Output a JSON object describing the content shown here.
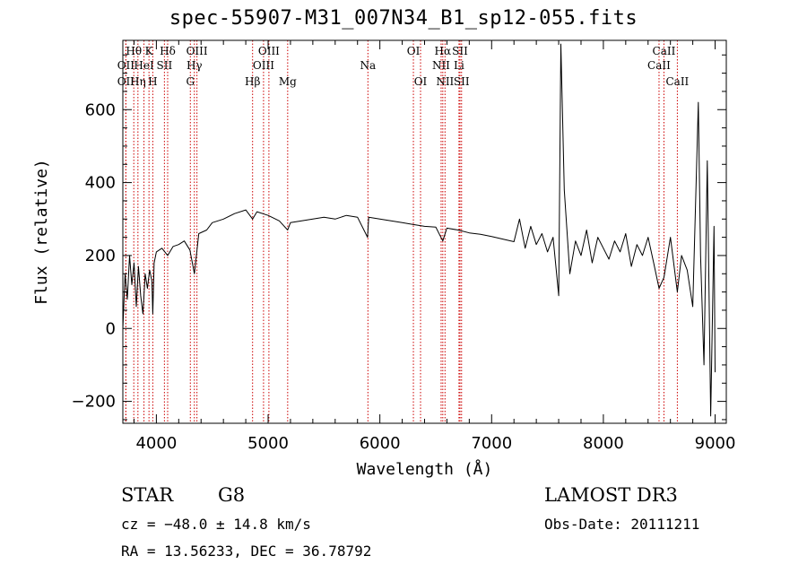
{
  "chart_data": {
    "type": "line",
    "title": "spec-55907-M31_007N34_B1_sp12-055.fits",
    "xlabel": "Wavelength (Å)",
    "ylabel": "Flux (relative)",
    "xlim": [
      3700,
      9100
    ],
    "ylim": [
      -260,
      790
    ],
    "xticks": [
      4000,
      5000,
      6000,
      7000,
      8000,
      9000
    ],
    "yticks": [
      -200,
      0,
      200,
      400,
      600
    ],
    "series": [
      {
        "name": "spectrum",
        "x": [
          3700,
          3720,
          3740,
          3760,
          3780,
          3800,
          3820,
          3840,
          3860,
          3880,
          3900,
          3920,
          3940,
          3960,
          3968,
          3980,
          4000,
          4050,
          4101,
          4150,
          4200,
          4250,
          4300,
          4340,
          4380,
          4450,
          4500,
          4600,
          4700,
          4800,
          4861,
          4900,
          5000,
          5100,
          5175,
          5200,
          5300,
          5400,
          5500,
          5600,
          5700,
          5800,
          5890,
          5900,
          6000,
          6100,
          6200,
          6300,
          6400,
          6500,
          6563,
          6600,
          6700,
          6800,
          6900,
          7000,
          7100,
          7200,
          7250,
          7300,
          7350,
          7400,
          7450,
          7500,
          7550,
          7600,
          7620,
          7650,
          7700,
          7750,
          7800,
          7850,
          7900,
          7950,
          8000,
          8050,
          8100,
          8150,
          8200,
          8250,
          8300,
          8350,
          8400,
          8450,
          8498,
          8542,
          8600,
          8662,
          8700,
          8750,
          8800,
          8850,
          8870,
          8900,
          8930,
          8960,
          8990,
          9000
        ],
        "y": [
          0,
          150,
          80,
          200,
          120,
          180,
          60,
          170,
          90,
          40,
          150,
          110,
          160,
          130,
          40,
          180,
          210,
          220,
          200,
          225,
          230,
          240,
          215,
          150,
          260,
          270,
          290,
          300,
          315,
          325,
          300,
          320,
          310,
          295,
          270,
          290,
          295,
          300,
          305,
          300,
          310,
          305,
          250,
          305,
          300,
          295,
          290,
          285,
          280,
          278,
          240,
          275,
          270,
          262,
          258,
          252,
          245,
          238,
          300,
          220,
          280,
          230,
          260,
          210,
          250,
          90,
          780,
          380,
          150,
          240,
          200,
          270,
          180,
          250,
          220,
          190,
          240,
          210,
          260,
          170,
          230,
          200,
          250,
          180,
          110,
          140,
          250,
          100,
          200,
          160,
          60,
          620,
          200,
          -100,
          460,
          -240,
          280,
          -120
        ]
      }
    ],
    "lines": [
      {
        "name": "Hθ",
        "x": 3798,
        "row": 1
      },
      {
        "name": "OII",
        "x": 3727,
        "row": 2
      },
      {
        "name": "OII",
        "x": 3727,
        "row": 3
      },
      {
        "name": "Hη",
        "x": 3835,
        "row": 3
      },
      {
        "name": "HeI",
        "x": 3889,
        "row": 2
      },
      {
        "name": "K",
        "x": 3934,
        "row": 1
      },
      {
        "name": "H",
        "x": 3968,
        "row": 3
      },
      {
        "name": "Hδ",
        "x": 4101,
        "row": 1
      },
      {
        "name": "SII",
        "x": 4072,
        "row": 2
      },
      {
        "name": "OIII",
        "x": 4363,
        "row": 1
      },
      {
        "name": "Hγ",
        "x": 4340,
        "row": 2
      },
      {
        "name": "G",
        "x": 4304,
        "row": 3
      },
      {
        "name": "Hβ",
        "x": 4861,
        "row": 3
      },
      {
        "name": "OIII",
        "x": 5007,
        "row": 1
      },
      {
        "name": "OIII",
        "x": 4959,
        "row": 2
      },
      {
        "name": "Mg",
        "x": 5175,
        "row": 3
      },
      {
        "name": "Na",
        "x": 5893,
        "row": 2
      },
      {
        "name": "OI",
        "x": 6300,
        "row": 1
      },
      {
        "name": "OI",
        "x": 6364,
        "row": 3
      },
      {
        "name": "Hα",
        "x": 6563,
        "row": 1
      },
      {
        "name": "NII",
        "x": 6548,
        "row": 2
      },
      {
        "name": "NII",
        "x": 6583,
        "row": 3
      },
      {
        "name": "SII",
        "x": 6717,
        "row": 1
      },
      {
        "name": "Li",
        "x": 6708,
        "row": 2
      },
      {
        "name": "SII",
        "x": 6731,
        "row": 3
      },
      {
        "name": "CaII",
        "x": 8542,
        "row": 1
      },
      {
        "name": "CaII",
        "x": 8498,
        "row": 2
      },
      {
        "name": "CaII",
        "x": 8662,
        "row": 3
      }
    ]
  },
  "meta": {
    "class_label": "STAR",
    "subclass_label": "G8",
    "survey": "LAMOST DR3",
    "cz": "cz = −48.0 ± 14.8 km/s",
    "obs_date": "Obs-Date: 20111211",
    "coords": "RA =  13.56233, DEC =  36.78792"
  },
  "colors": {
    "line": "#000000",
    "marker": "#cc0000",
    "axis": "#000000"
  }
}
